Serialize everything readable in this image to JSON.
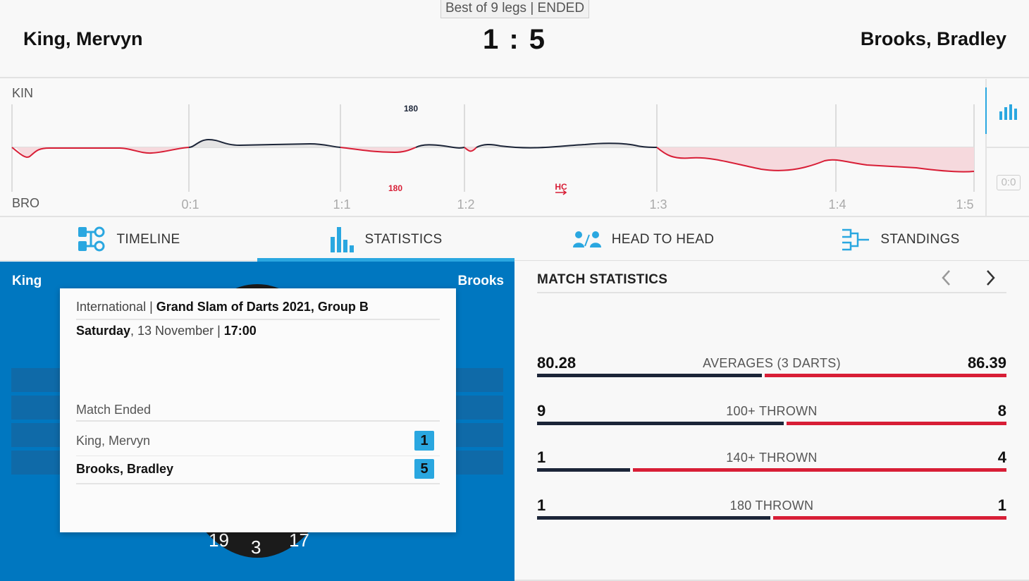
{
  "header": {
    "format": "Best of 9 legs | ENDED",
    "player_left": "King, Mervyn",
    "player_right": "Brooks, Bradley",
    "score_left": "1",
    "score_sep": ":",
    "score_right": "5"
  },
  "timeline": {
    "top_label": "KIN",
    "bottom_label": "BRO",
    "leg_ticks": [
      "0:1",
      "1:1",
      "1:2",
      "1:3",
      "1:4",
      "1:5"
    ],
    "annotation_top": "180",
    "annotation_bottom_1": "180",
    "annotation_bottom_2": "HC",
    "reset_label": "0:0",
    "colors": {
      "king_line": "#1c2538",
      "brooks_line": "#d81e36",
      "brooks_fill": "#f6d9dd",
      "king_fill": "#e2e2e2"
    }
  },
  "tabs": [
    {
      "label": "TIMELINE",
      "icon": "timeline-icon",
      "active": false
    },
    {
      "label": "STATISTICS",
      "icon": "bar-chart-icon",
      "active": true
    },
    {
      "label": "HEAD TO HEAD",
      "icon": "head-to-head-icon",
      "active": false
    },
    {
      "label": "STANDINGS",
      "icon": "bracket-icon",
      "active": false
    }
  ],
  "board": {
    "name_left": "King",
    "name_right": "Brooks",
    "numbers": [
      "19",
      "3",
      "17"
    ]
  },
  "info_card": {
    "category": "International",
    "sep": " | ",
    "tournament": "Grand Slam of Darts 2021, Group B",
    "weekday": "Saturday",
    "date": ", 13 November",
    "time": "17:00",
    "status": "Match Ended",
    "rows": [
      {
        "name": "King, Mervyn",
        "score": "1"
      },
      {
        "name": "Brooks, Bradley",
        "score": "5"
      }
    ]
  },
  "stats": {
    "title": "MATCH STATISTICS",
    "rows": [
      {
        "label": "AVERAGES (3 DARTS)",
        "left": "80.28",
        "right": "86.39",
        "left_value": 80.28,
        "right_value": 86.39
      },
      {
        "label": "100+ THROWN",
        "left": "9",
        "right": "8",
        "left_value": 9,
        "right_value": 8
      },
      {
        "label": "140+ THROWN",
        "left": "1",
        "right": "4",
        "left_value": 1,
        "right_value": 4
      },
      {
        "label": "180 THROWN",
        "left": "1",
        "right": "1",
        "left_value": 1,
        "right_value": 1
      }
    ],
    "colors": {
      "left": "#1c2538",
      "right": "#d81e36"
    }
  }
}
